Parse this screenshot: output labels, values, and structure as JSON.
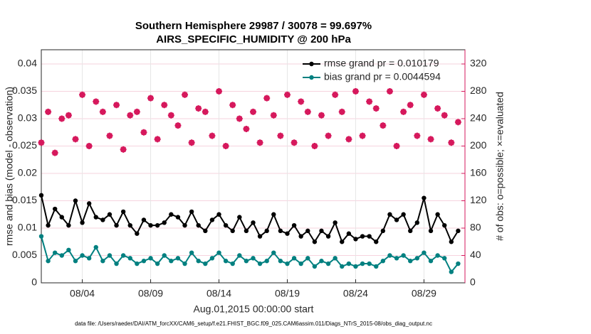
{
  "chart_data": {
    "type": "line",
    "title": "Southern Hemisphere 29987 / 30078 = 99.697%",
    "subtitle": "AIRS_SPECIFIC_HUMIDITY @ 200 hPa",
    "xlabel": "Aug.01,2015 00:00:00 start",
    "ylabel": "rmse and bias (model - observation)",
    "y2label": "# of obs: o=possible; ×=evaluated",
    "footnote": "data file: /Users/raeder/DAI/ATM_forcXX/CAM6_setup/f.e21.FHIST_BGC.f09_025.CAM6assim.011/Diags_NTrS_2015-08/obs_diag_output.nc",
    "x": [
      0,
      0.5,
      1,
      1.5,
      2,
      2.5,
      3,
      3.5,
      4,
      4.5,
      5,
      5.5,
      6,
      6.5,
      7,
      7.5,
      8,
      8.5,
      9,
      9.5,
      10,
      10.5,
      11,
      11.5,
      12,
      12.5,
      13,
      13.5,
      14,
      14.5,
      15,
      15.5,
      16,
      16.5,
      17,
      17.5,
      18,
      18.5,
      19,
      19.5,
      20,
      20.5,
      21,
      21.5,
      22,
      22.5,
      23,
      23.5,
      24,
      24.5,
      25,
      25.5,
      26,
      26.5,
      27,
      27.5,
      28,
      28.5,
      29,
      29.5,
      30,
      30.5
    ],
    "xlim": [
      0,
      31
    ],
    "xticks": [
      {
        "value": 3,
        "label": "08/04"
      },
      {
        "value": 8,
        "label": "08/09"
      },
      {
        "value": 13,
        "label": "08/14"
      },
      {
        "value": 18,
        "label": "08/19"
      },
      {
        "value": 23,
        "label": "08/24"
      },
      {
        "value": 28,
        "label": "08/29"
      }
    ],
    "ylim": [
      0,
      0.0426
    ],
    "yticks": [
      0,
      0.005,
      0.01,
      0.015,
      0.02,
      0.025,
      0.03,
      0.035,
      0.04
    ],
    "y2lim": [
      0,
      340.8
    ],
    "y2ticks": [
      0,
      40,
      80,
      120,
      160,
      200,
      240,
      280,
      320
    ],
    "y2color": "#d6185c",
    "grid": true,
    "legend_position": "upper right",
    "legend_text_color": "#1f5fe0",
    "series": [
      {
        "name": "rmse grand pr = 0.010179",
        "color": "#000000",
        "marker": "dot",
        "values": [
          0.016,
          0.0105,
          0.0135,
          0.012,
          0.0105,
          0.015,
          0.011,
          0.0145,
          0.012,
          0.0115,
          0.0125,
          0.0105,
          0.013,
          0.0105,
          0.009,
          0.0115,
          0.0105,
          0.0105,
          0.011,
          0.0125,
          0.012,
          0.0105,
          0.013,
          0.0105,
          0.0095,
          0.0115,
          0.0125,
          0.0105,
          0.0095,
          0.012,
          0.0095,
          0.011,
          0.0085,
          0.0095,
          0.0125,
          0.0095,
          0.009,
          0.0105,
          0.0085,
          0.0095,
          0.0075,
          0.0095,
          0.0085,
          0.011,
          0.0075,
          0.009,
          0.008,
          0.0085,
          0.0085,
          0.0075,
          0.0095,
          0.0125,
          0.0115,
          0.0125,
          0.0095,
          0.011,
          0.0155,
          0.0095,
          0.0125,
          0.0105,
          0.0075,
          0.0095
        ]
      },
      {
        "name": "bias grand pr = 0.0044594",
        "color": "#008080",
        "marker": "dot",
        "values": [
          0.0085,
          0.004,
          0.0055,
          0.005,
          0.006,
          0.004,
          0.005,
          0.0045,
          0.0065,
          0.004,
          0.005,
          0.0035,
          0.005,
          0.0045,
          0.0035,
          0.004,
          0.0045,
          0.0035,
          0.005,
          0.004,
          0.0045,
          0.0035,
          0.0055,
          0.004,
          0.0035,
          0.0045,
          0.0055,
          0.004,
          0.0035,
          0.005,
          0.004,
          0.0045,
          0.0035,
          0.004,
          0.0055,
          0.004,
          0.0035,
          0.0045,
          0.0035,
          0.0045,
          0.003,
          0.004,
          0.0035,
          0.0045,
          0.003,
          0.0035,
          0.003,
          0.0035,
          0.0035,
          0.003,
          0.004,
          0.005,
          0.0045,
          0.005,
          0.004,
          0.0045,
          0.0055,
          0.004,
          0.005,
          0.0045,
          0.002,
          0.0035
        ]
      },
      {
        "axis": "y2",
        "color": "#d6185c",
        "marker": "circle",
        "values": [
          205,
          250,
          190,
          240,
          245,
          210,
          275,
          200,
          265,
          250,
          215,
          260,
          195,
          245,
          250,
          220,
          270,
          210,
          260,
          245,
          230,
          275,
          205,
          255,
          250,
          215,
          280,
          200,
          260,
          240,
          225,
          250,
          205,
          270,
          245,
          215,
          275,
          205,
          265,
          250,
          200,
          245,
          215,
          275,
          250,
          210,
          280,
          215,
          265,
          255,
          230,
          280,
          200,
          250,
          260,
          215,
          275,
          210,
          255,
          245,
          205,
          235
        ]
      },
      {
        "axis": "y2",
        "color": "#d6185c",
        "marker": "star",
        "values": [
          205,
          250,
          190,
          240,
          245,
          210,
          275,
          200,
          265,
          250,
          215,
          260,
          195,
          245,
          250,
          220,
          270,
          210,
          260,
          245,
          230,
          275,
          205,
          255,
          250,
          215,
          280,
          200,
          260,
          240,
          225,
          250,
          205,
          270,
          245,
          215,
          275,
          205,
          265,
          250,
          200,
          245,
          215,
          275,
          250,
          210,
          280,
          215,
          265,
          255,
          230,
          280,
          200,
          250,
          260,
          215,
          275,
          210,
          255,
          245,
          205,
          235
        ]
      }
    ]
  }
}
